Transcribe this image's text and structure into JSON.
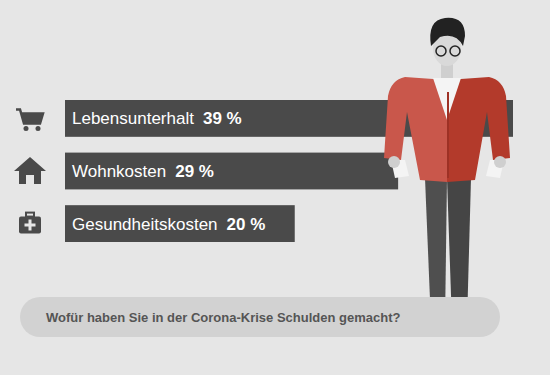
{
  "chart_data": {
    "type": "bar",
    "orientation": "horizontal",
    "title": "Wofür haben Sie in der Corona-Krise Schulden gemacht?",
    "categories": [
      "Lebensunterhalt",
      "Wohnkosten",
      "Gesundheitskosten"
    ],
    "values": [
      39,
      29,
      20
    ],
    "value_labels": [
      "39 %",
      "29 %",
      "20 %"
    ],
    "data_labels": true,
    "tick_labels": false,
    "color": "#4a4a4a"
  }
}
